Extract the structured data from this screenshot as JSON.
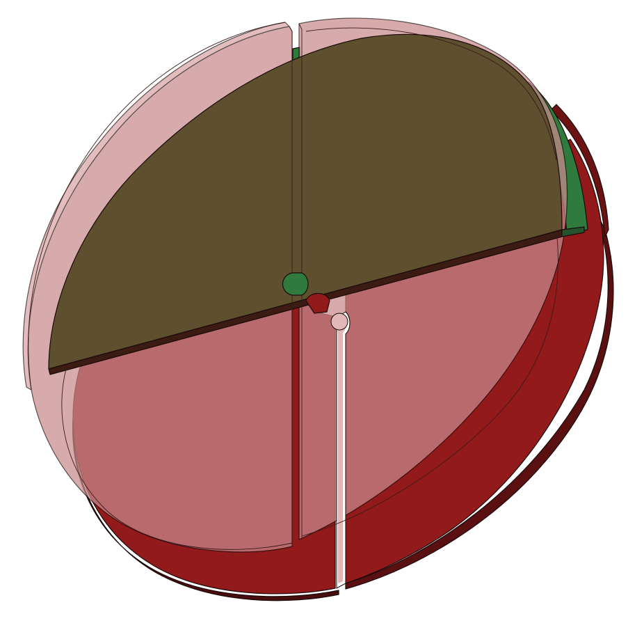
{
  "scene": {
    "description_visible_text": "",
    "parts": [
      {
        "name": "back-disc-halves",
        "color": "#8f1b1b"
      },
      {
        "name": "front-transparent-disc",
        "color": "#c98a8c"
      },
      {
        "name": "top-overlay-half",
        "color": "#5e4f2f"
      },
      {
        "name": "green-inner-plate",
        "color": "#2f7a3d"
      }
    ]
  }
}
